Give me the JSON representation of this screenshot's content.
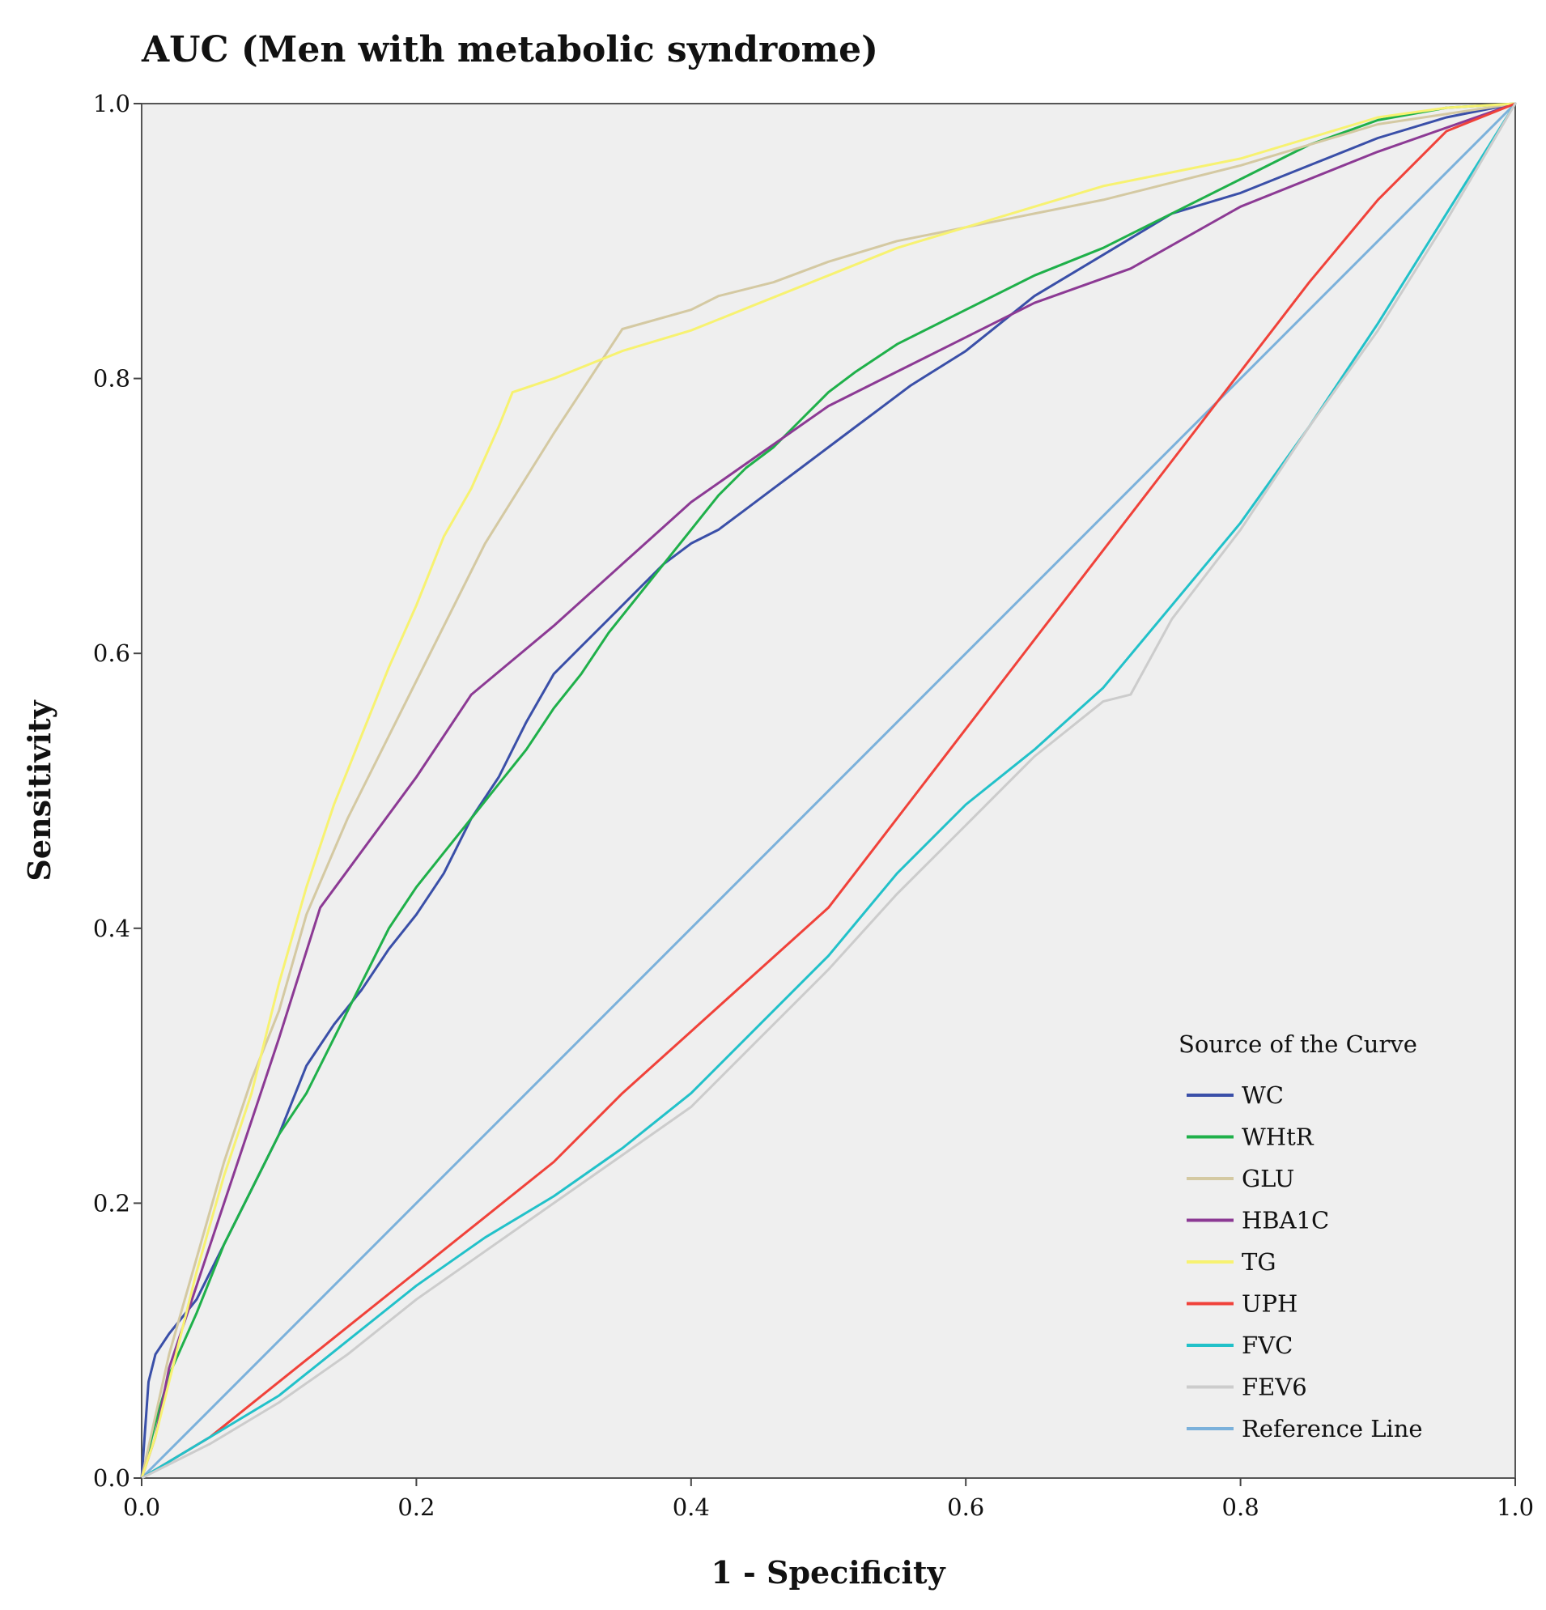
{
  "chart_data": {
    "type": "line",
    "title": "AUC (Men with metabolic syndrome)",
    "xlabel": "1 - Specificity",
    "ylabel": "Sensitivity",
    "xlim": [
      0,
      1
    ],
    "ylim": [
      0,
      1
    ],
    "x_ticks": [
      "0.0",
      "0.2",
      "0.4",
      "0.6",
      "0.8",
      "1.0"
    ],
    "y_ticks": [
      "0.0",
      "0.2",
      "0.4",
      "0.6",
      "0.8",
      "1.0"
    ],
    "plot_background": "#efefef",
    "grid": false,
    "legend_title": "Source of the Curve",
    "legend_position": "bottom-right",
    "series": [
      {
        "name": "WC",
        "color": "#3a4fa8",
        "points": [
          [
            0,
            0
          ],
          [
            0.005,
            0.07
          ],
          [
            0.01,
            0.09
          ],
          [
            0.02,
            0.105
          ],
          [
            0.04,
            0.13
          ],
          [
            0.06,
            0.17
          ],
          [
            0.08,
            0.21
          ],
          [
            0.1,
            0.25
          ],
          [
            0.12,
            0.3
          ],
          [
            0.14,
            0.33
          ],
          [
            0.16,
            0.355
          ],
          [
            0.18,
            0.385
          ],
          [
            0.2,
            0.41
          ],
          [
            0.22,
            0.44
          ],
          [
            0.24,
            0.48
          ],
          [
            0.26,
            0.51
          ],
          [
            0.28,
            0.55
          ],
          [
            0.3,
            0.585
          ],
          [
            0.32,
            0.605
          ],
          [
            0.34,
            0.625
          ],
          [
            0.36,
            0.645
          ],
          [
            0.38,
            0.665
          ],
          [
            0.4,
            0.68
          ],
          [
            0.42,
            0.69
          ],
          [
            0.44,
            0.705
          ],
          [
            0.46,
            0.72
          ],
          [
            0.48,
            0.735
          ],
          [
            0.5,
            0.75
          ],
          [
            0.52,
            0.765
          ],
          [
            0.54,
            0.78
          ],
          [
            0.56,
            0.795
          ],
          [
            0.6,
            0.82
          ],
          [
            0.65,
            0.86
          ],
          [
            0.7,
            0.89
          ],
          [
            0.75,
            0.92
          ],
          [
            0.8,
            0.935
          ],
          [
            0.85,
            0.955
          ],
          [
            0.9,
            0.975
          ],
          [
            0.95,
            0.99
          ],
          [
            1,
            1
          ]
        ]
      },
      {
        "name": "WHtR",
        "color": "#1fb04a",
        "points": [
          [
            0,
            0
          ],
          [
            0.01,
            0.04
          ],
          [
            0.02,
            0.075
          ],
          [
            0.04,
            0.12
          ],
          [
            0.06,
            0.17
          ],
          [
            0.08,
            0.21
          ],
          [
            0.1,
            0.25
          ],
          [
            0.12,
            0.28
          ],
          [
            0.14,
            0.32
          ],
          [
            0.16,
            0.36
          ],
          [
            0.18,
            0.4
          ],
          [
            0.2,
            0.43
          ],
          [
            0.22,
            0.455
          ],
          [
            0.24,
            0.48
          ],
          [
            0.26,
            0.505
          ],
          [
            0.28,
            0.53
          ],
          [
            0.3,
            0.56
          ],
          [
            0.32,
            0.585
          ],
          [
            0.34,
            0.615
          ],
          [
            0.36,
            0.64
          ],
          [
            0.38,
            0.665
          ],
          [
            0.4,
            0.69
          ],
          [
            0.42,
            0.715
          ],
          [
            0.44,
            0.735
          ],
          [
            0.46,
            0.75
          ],
          [
            0.48,
            0.77
          ],
          [
            0.5,
            0.79
          ],
          [
            0.52,
            0.805
          ],
          [
            0.55,
            0.825
          ],
          [
            0.6,
            0.85
          ],
          [
            0.65,
            0.875
          ],
          [
            0.7,
            0.895
          ],
          [
            0.75,
            0.92
          ],
          [
            0.8,
            0.945
          ],
          [
            0.85,
            0.97
          ],
          [
            0.9,
            0.988
          ],
          [
            0.95,
            0.997
          ],
          [
            1,
            1
          ]
        ]
      },
      {
        "name": "GLU",
        "color": "#d4c9a2",
        "points": [
          [
            0,
            0
          ],
          [
            0.02,
            0.09
          ],
          [
            0.04,
            0.16
          ],
          [
            0.06,
            0.23
          ],
          [
            0.08,
            0.29
          ],
          [
            0.1,
            0.34
          ],
          [
            0.12,
            0.41
          ],
          [
            0.15,
            0.48
          ],
          [
            0.2,
            0.58
          ],
          [
            0.25,
            0.68
          ],
          [
            0.3,
            0.76
          ],
          [
            0.35,
            0.836
          ],
          [
            0.4,
            0.85
          ],
          [
            0.42,
            0.86
          ],
          [
            0.46,
            0.87
          ],
          [
            0.5,
            0.885
          ],
          [
            0.55,
            0.9
          ],
          [
            0.6,
            0.91
          ],
          [
            0.7,
            0.93
          ],
          [
            0.8,
            0.955
          ],
          [
            0.9,
            0.985
          ],
          [
            1,
            1
          ]
        ]
      },
      {
        "name": "HBA1C",
        "color": "#8c3a94",
        "points": [
          [
            0,
            0
          ],
          [
            0.01,
            0.03
          ],
          [
            0.02,
            0.08
          ],
          [
            0.04,
            0.14
          ],
          [
            0.06,
            0.2
          ],
          [
            0.08,
            0.26
          ],
          [
            0.1,
            0.32
          ],
          [
            0.13,
            0.415
          ],
          [
            0.2,
            0.51
          ],
          [
            0.24,
            0.57
          ],
          [
            0.3,
            0.62
          ],
          [
            0.35,
            0.665
          ],
          [
            0.4,
            0.71
          ],
          [
            0.45,
            0.745
          ],
          [
            0.5,
            0.78
          ],
          [
            0.55,
            0.805
          ],
          [
            0.6,
            0.83
          ],
          [
            0.65,
            0.855
          ],
          [
            0.72,
            0.88
          ],
          [
            0.8,
            0.925
          ],
          [
            0.9,
            0.965
          ],
          [
            1,
            1
          ]
        ]
      },
      {
        "name": "TG",
        "color": "#f7f271",
        "points": [
          [
            0,
            0
          ],
          [
            0.01,
            0.03
          ],
          [
            0.02,
            0.07
          ],
          [
            0.04,
            0.15
          ],
          [
            0.06,
            0.22
          ],
          [
            0.08,
            0.28
          ],
          [
            0.1,
            0.36
          ],
          [
            0.12,
            0.43
          ],
          [
            0.14,
            0.49
          ],
          [
            0.16,
            0.54
          ],
          [
            0.18,
            0.59
          ],
          [
            0.2,
            0.635
          ],
          [
            0.22,
            0.685
          ],
          [
            0.24,
            0.72
          ],
          [
            0.26,
            0.765
          ],
          [
            0.27,
            0.79
          ],
          [
            0.3,
            0.8
          ],
          [
            0.35,
            0.82
          ],
          [
            0.4,
            0.835
          ],
          [
            0.45,
            0.855
          ],
          [
            0.5,
            0.875
          ],
          [
            0.55,
            0.895
          ],
          [
            0.6,
            0.91
          ],
          [
            0.65,
            0.925
          ],
          [
            0.7,
            0.94
          ],
          [
            0.75,
            0.95
          ],
          [
            0.8,
            0.96
          ],
          [
            0.85,
            0.975
          ],
          [
            0.9,
            0.99
          ],
          [
            0.95,
            0.997
          ],
          [
            1,
            1
          ]
        ]
      },
      {
        "name": "UPH",
        "color": "#f0423a",
        "points": [
          [
            0,
            0
          ],
          [
            0.05,
            0.03
          ],
          [
            0.1,
            0.07
          ],
          [
            0.15,
            0.11
          ],
          [
            0.2,
            0.15
          ],
          [
            0.25,
            0.19
          ],
          [
            0.3,
            0.23
          ],
          [
            0.35,
            0.28
          ],
          [
            0.4,
            0.325
          ],
          [
            0.45,
            0.37
          ],
          [
            0.5,
            0.415
          ],
          [
            0.55,
            0.48
          ],
          [
            0.6,
            0.545
          ],
          [
            0.65,
            0.61
          ],
          [
            0.7,
            0.675
          ],
          [
            0.75,
            0.74
          ],
          [
            0.8,
            0.805
          ],
          [
            0.85,
            0.87
          ],
          [
            0.9,
            0.93
          ],
          [
            0.95,
            0.98
          ],
          [
            1,
            1
          ]
        ]
      },
      {
        "name": "FVC",
        "color": "#22c1c9",
        "points": [
          [
            0,
            0
          ],
          [
            0.05,
            0.03
          ],
          [
            0.1,
            0.06
          ],
          [
            0.15,
            0.1
          ],
          [
            0.2,
            0.14
          ],
          [
            0.25,
            0.175
          ],
          [
            0.3,
            0.205
          ],
          [
            0.35,
            0.24
          ],
          [
            0.4,
            0.28
          ],
          [
            0.45,
            0.33
          ],
          [
            0.5,
            0.38
          ],
          [
            0.55,
            0.44
          ],
          [
            0.6,
            0.49
          ],
          [
            0.65,
            0.53
          ],
          [
            0.7,
            0.575
          ],
          [
            0.75,
            0.635
          ],
          [
            0.8,
            0.695
          ],
          [
            0.85,
            0.765
          ],
          [
            0.9,
            0.84
          ],
          [
            0.95,
            0.92
          ],
          [
            1,
            1
          ]
        ]
      },
      {
        "name": "FEV6",
        "color": "#cccccc",
        "points": [
          [
            0,
            0
          ],
          [
            0.05,
            0.025
          ],
          [
            0.1,
            0.055
          ],
          [
            0.15,
            0.09
          ],
          [
            0.2,
            0.13
          ],
          [
            0.25,
            0.165
          ],
          [
            0.3,
            0.2
          ],
          [
            0.35,
            0.235
          ],
          [
            0.4,
            0.27
          ],
          [
            0.45,
            0.32
          ],
          [
            0.5,
            0.37
          ],
          [
            0.55,
            0.425
          ],
          [
            0.6,
            0.475
          ],
          [
            0.65,
            0.525
          ],
          [
            0.7,
            0.565
          ],
          [
            0.72,
            0.57
          ],
          [
            0.75,
            0.625
          ],
          [
            0.8,
            0.69
          ],
          [
            0.85,
            0.765
          ],
          [
            0.9,
            0.835
          ],
          [
            0.95,
            0.915
          ],
          [
            1,
            1
          ]
        ]
      },
      {
        "name": "Reference Line",
        "color": "#7bb1db",
        "points": [
          [
            0,
            0
          ],
          [
            1,
            1
          ]
        ]
      }
    ]
  }
}
